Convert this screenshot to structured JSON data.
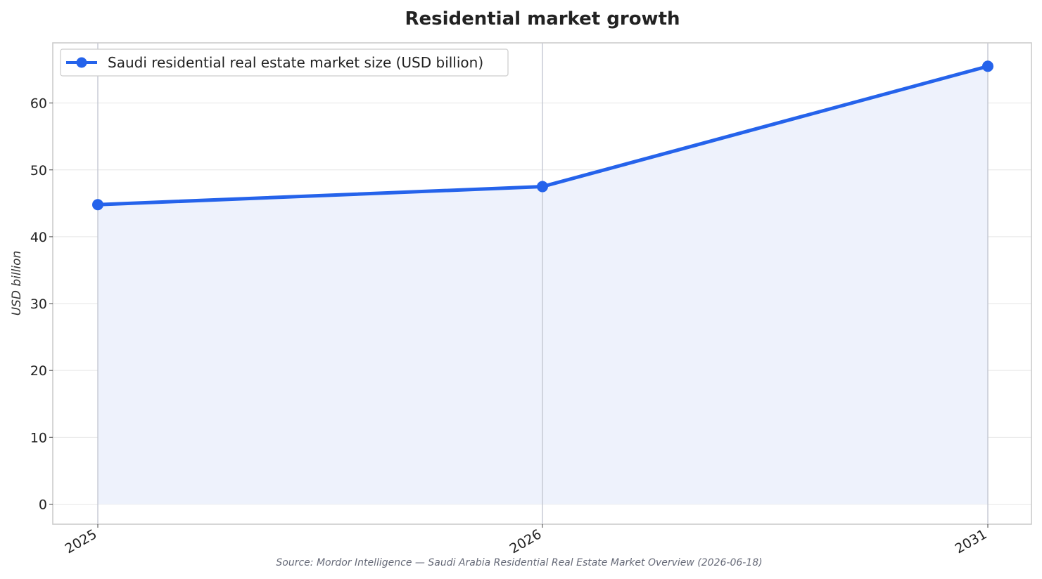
{
  "chart_data": {
    "type": "line",
    "title": "Residential market growth",
    "xlabel": "",
    "ylabel": "USD billion",
    "categories": [
      "2025",
      "2026",
      "2031"
    ],
    "x": [
      2025,
      2026,
      2031
    ],
    "series": [
      {
        "name": "Saudi residential real estate market size (USD billion)",
        "values": [
          44.8,
          47.5,
          65.5
        ]
      }
    ],
    "ylim": [
      -3,
      69
    ],
    "yticks": [
      0,
      10,
      20,
      30,
      40,
      50,
      60
    ],
    "grid": true,
    "legend": "top-left",
    "area_fill": true,
    "source": "Source: Mordor Intelligence — Saudi Arabia Residential Real Estate Market Overview (2026-06-18)",
    "colors": {
      "line": "#2563eb",
      "fill": "#eef2fc",
      "grid": "#e6e6e6",
      "vline": "#c4c8d2",
      "frame": "#cccccc"
    }
  }
}
